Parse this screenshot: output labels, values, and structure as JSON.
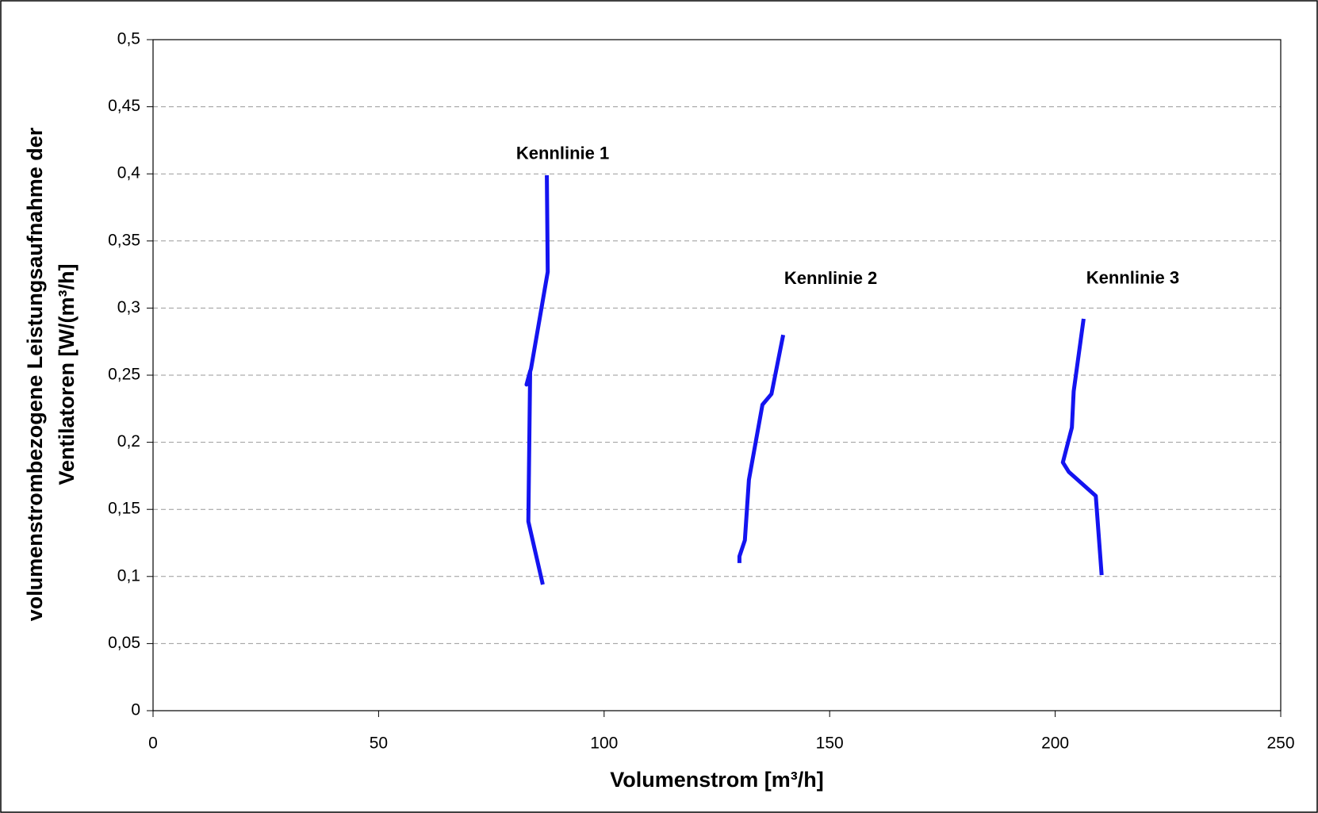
{
  "chart_data": {
    "type": "line",
    "xlabel": "Volumenstrom [m³/h]",
    "ylabel": [
      "volumenstrombezogene Leistungsaufnahme der",
      "Ventilatoren [W/(m³/h]"
    ],
    "xlim": [
      0,
      250
    ],
    "xticks": [
      0,
      50,
      100,
      150,
      200,
      250
    ],
    "ylim": [
      0,
      0.5
    ],
    "yticks": [
      0,
      {
        "value": 0.05,
        "label": "0,05"
      },
      {
        "value": 0.1,
        "label": "0,1"
      },
      {
        "value": 0.15,
        "label": "0,15"
      },
      {
        "value": 0.2,
        "label": "0,2"
      },
      {
        "value": 0.25,
        "label": "0,25"
      },
      {
        "value": 0.3,
        "label": "0,3"
      },
      {
        "value": 0.35,
        "label": "0,35"
      },
      {
        "value": 0.4,
        "label": "0,4"
      },
      {
        "value": 0.45,
        "label": "0,45"
      },
      {
        "value": 0.5,
        "label": "0,5"
      }
    ],
    "grid": true,
    "series": [
      {
        "name": "Kennlinie 1",
        "color": "#1414f0",
        "x": [
          86.4,
          83.2,
          83.6,
          82.8,
          83.8,
          87.5,
          87.3
        ],
        "values": [
          0.094,
          0.141,
          0.253,
          0.243,
          0.255,
          0.327,
          0.399
        ]
      },
      {
        "name": "Kennlinie 2",
        "color": "#1414f0",
        "x": [
          130.0,
          130.0,
          131.2,
          132.1,
          135.1,
          137.1,
          139.7
        ],
        "values": [
          0.11,
          0.115,
          0.127,
          0.172,
          0.228,
          0.236,
          0.28
        ]
      },
      {
        "name": "Kennlinie 3",
        "color": "#1414f0",
        "x": [
          210.3,
          209.0,
          203.0,
          201.7,
          203.7,
          204.1,
          206.3
        ],
        "values": [
          0.101,
          0.16,
          0.178,
          0.185,
          0.211,
          0.238,
          0.292
        ]
      }
    ]
  }
}
